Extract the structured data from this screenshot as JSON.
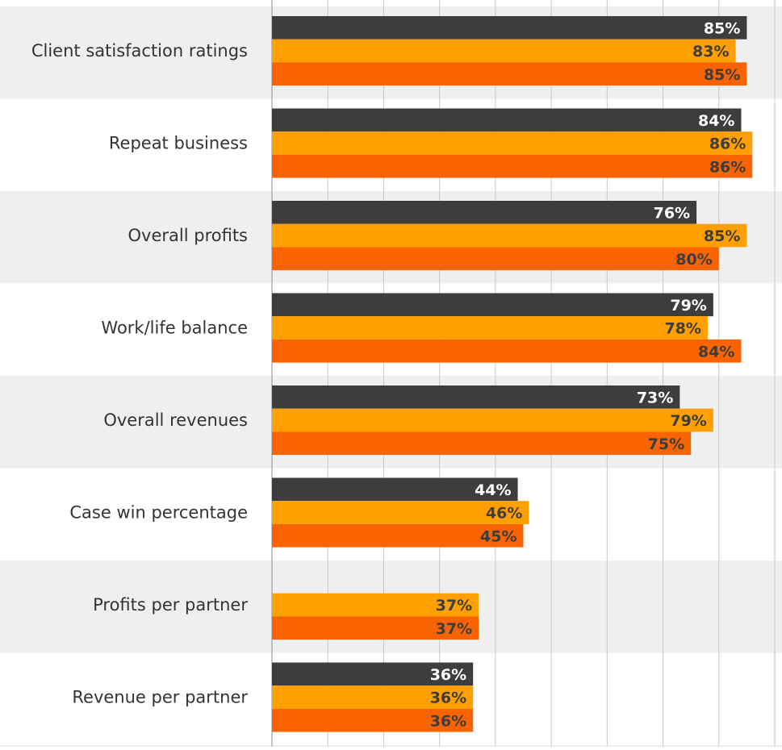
{
  "chart_data": {
    "type": "bar",
    "orientation": "horizontal",
    "categories": [
      "Client satisfaction ratings",
      "Repeat business",
      "Overall profits",
      "Work/life balance",
      "Overall revenues",
      "Case win percentage",
      "Profits per partner",
      "Revenue per partner"
    ],
    "series": [
      {
        "color": "#3d3d3d",
        "values": [
          85,
          84,
          76,
          79,
          73,
          44,
          null,
          36
        ],
        "value_labels": [
          "85%",
          "84%",
          "76%",
          "79%",
          "73%",
          "44%",
          null,
          "36%"
        ]
      },
      {
        "color": "#ffa000",
        "values": [
          83,
          86,
          85,
          78,
          79,
          46,
          37,
          36
        ],
        "value_labels": [
          "83%",
          "86%",
          "85%",
          "78%",
          "79%",
          "46%",
          "37%",
          "36%"
        ]
      },
      {
        "color": "#fa6400",
        "values": [
          85,
          86,
          80,
          84,
          75,
          45,
          37,
          36
        ],
        "value_labels": [
          "85%",
          "86%",
          "80%",
          "84%",
          "75%",
          "45%",
          "37%",
          "36%"
        ]
      }
    ],
    "xlim": [
      0,
      91.3
    ],
    "xticks": [
      0,
      10,
      20,
      30,
      40,
      50,
      60,
      70,
      80,
      90
    ],
    "grid": true
  }
}
